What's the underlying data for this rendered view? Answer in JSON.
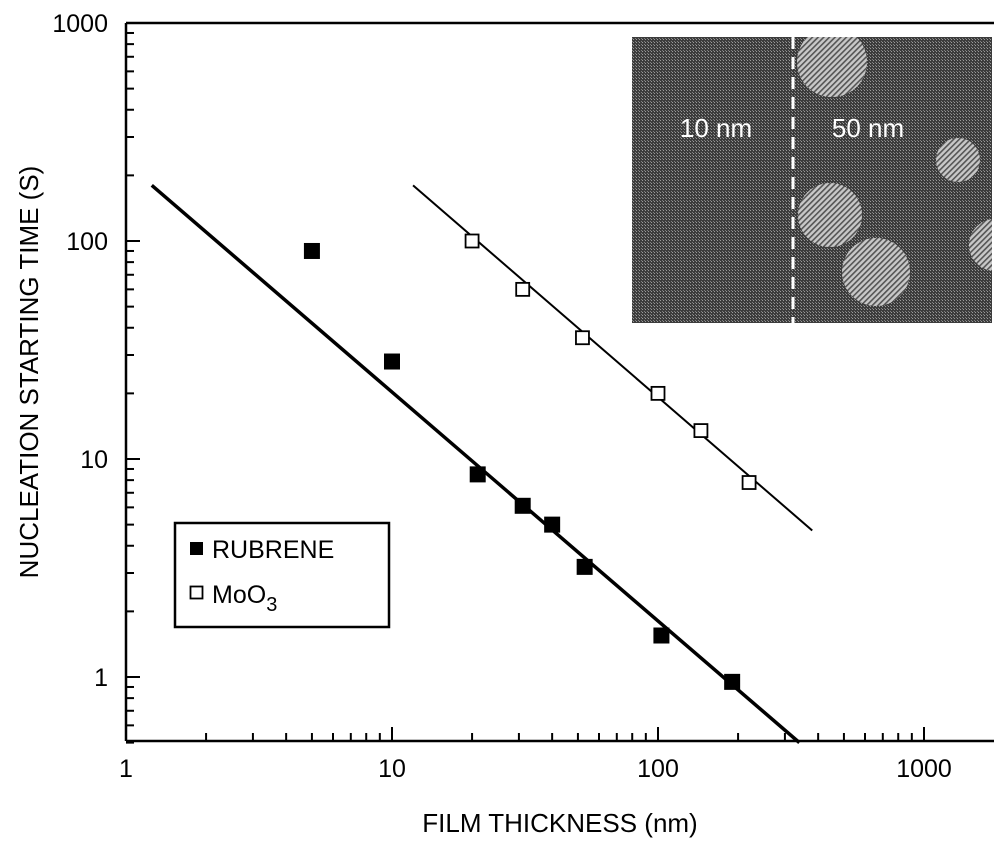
{
  "chart_data": {
    "type": "scatter",
    "xlabel": "FILM THICKNESS (nm)",
    "ylabel": "NUCLEATION STARTING TIME (S)",
    "x_scale": "log",
    "y_scale": "log",
    "xlim": [
      1,
      1800
    ],
    "ylim": [
      0.5,
      1000
    ],
    "x_ticks": [
      1,
      10,
      100,
      1000
    ],
    "x_tick_labels": [
      "1",
      "10",
      "100",
      "1000"
    ],
    "y_ticks": [
      1,
      10,
      100,
      1000
    ],
    "y_tick_labels": [
      "1",
      "10",
      "100",
      "1000"
    ],
    "grid": false,
    "legend_position": "bottom-left",
    "series": [
      {
        "name": "RUBRENE",
        "marker": "filled-square",
        "x": [
          5,
          10,
          21,
          31,
          40,
          53,
          103,
          190
        ],
        "y": [
          90,
          28,
          8.5,
          6.1,
          5.0,
          3.2,
          1.55,
          0.95
        ],
        "fit_line": {
          "x": [
            1.25,
            340
          ],
          "y": [
            180,
            0.5
          ],
          "width": "thick"
        }
      },
      {
        "name": "MoO3",
        "marker": "open-square",
        "x": [
          20,
          31,
          52,
          100,
          145,
          220
        ],
        "y": [
          100,
          60,
          36,
          20,
          13.5,
          7.8
        ],
        "fit_line": {
          "x": [
            12,
            380
          ],
          "y": [
            180,
            4.7
          ],
          "width": "thin"
        }
      }
    ],
    "inset": {
      "labels": [
        "10 nm",
        "50 nm"
      ],
      "position": "top-right"
    },
    "colors": {
      "axis": "#000000",
      "marker": "#000000",
      "inset_bg": "#555555",
      "inset_grain": "#b8b8b8"
    }
  }
}
